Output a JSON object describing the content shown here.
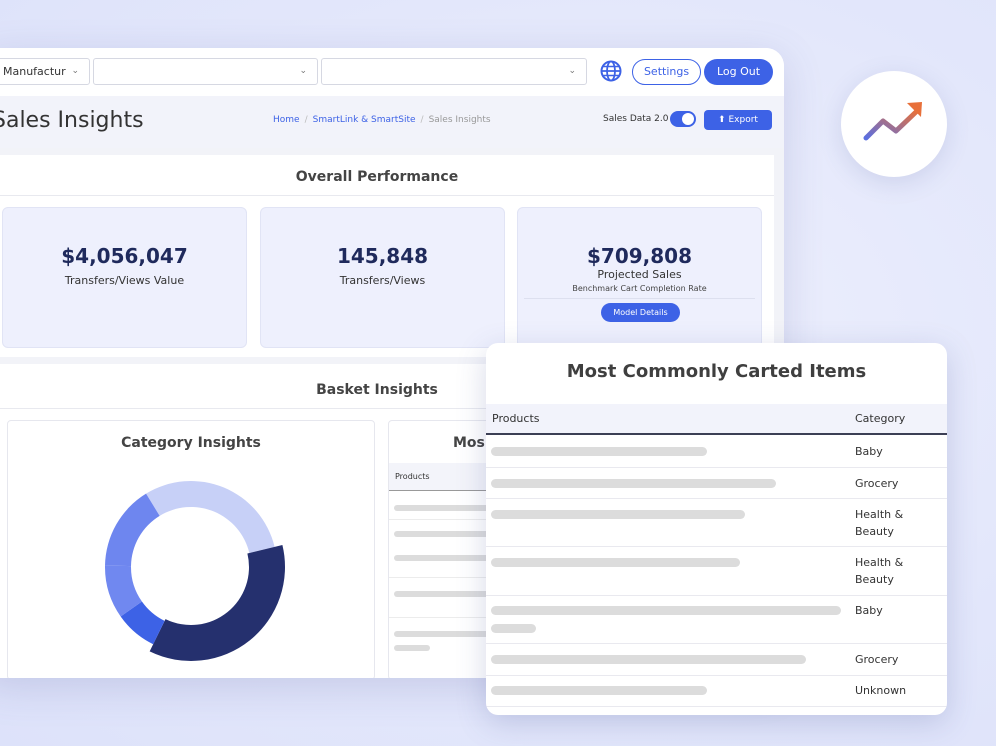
{
  "topbar": {
    "manufacturer_select": "Manufactur",
    "select_2": "",
    "select_3": "",
    "settings_label": "Settings",
    "logout_label": "Log Out"
  },
  "header": {
    "title": "Sales Insights",
    "breadcrumb": [
      "Home",
      "SmartLink & SmartSite",
      "Sales Insights"
    ],
    "toggle_label": "Sales Data 2.0",
    "toggle_on": true,
    "export_label": "Export"
  },
  "overall": {
    "title": "Overall Performance",
    "cards": [
      {
        "value": "$4,056,047",
        "label": "Transfers/Views Value"
      },
      {
        "value": "145,848",
        "label": "Transfers/Views"
      },
      {
        "value": "$709,808",
        "label": "Projected Sales",
        "sub": "Benchmark Cart Completion Rate",
        "button": "Model Details"
      }
    ]
  },
  "basket": {
    "title": "Basket Insights",
    "category_title": "Category Insights",
    "most_title_partial": "Mos",
    "products_header": "Products"
  },
  "donut": {
    "segments": [
      {
        "color": "#c7d0f7",
        "share": 0.3
      },
      {
        "color": "#25306e",
        "share": 0.36
      },
      {
        "color": "#3d62e6",
        "share": 0.08
      },
      {
        "color": "#7088f0",
        "share": 0.1
      },
      {
        "color": "#6e86ef",
        "share": 0.16
      }
    ]
  },
  "carted": {
    "title": "Most Commonly Carted Items",
    "columns": [
      "Products",
      "Category"
    ],
    "rows": [
      {
        "category_line1": "Baby",
        "category_line2": ""
      },
      {
        "category_line1": "Grocery",
        "category_line2": ""
      },
      {
        "category_line1": "Health &",
        "category_line2": "Beauty"
      },
      {
        "category_line1": "Health &",
        "category_line2": "Beauty"
      },
      {
        "category_line1": "Baby",
        "category_line2": ""
      },
      {
        "category_line1": "Grocery",
        "category_line2": ""
      },
      {
        "category_line1": "Unknown",
        "category_line2": ""
      }
    ]
  },
  "colors": {
    "accent": "#3d62e6",
    "navy": "#1f2a5c",
    "card_bg": "#eef0fd",
    "trend_start": "#5b6fe0",
    "trend_end": "#e8703a"
  },
  "icons": {
    "globe": "globe-icon",
    "export": "upload-icon",
    "chevron": "chevron-down-icon",
    "trend": "trend-up-icon"
  }
}
